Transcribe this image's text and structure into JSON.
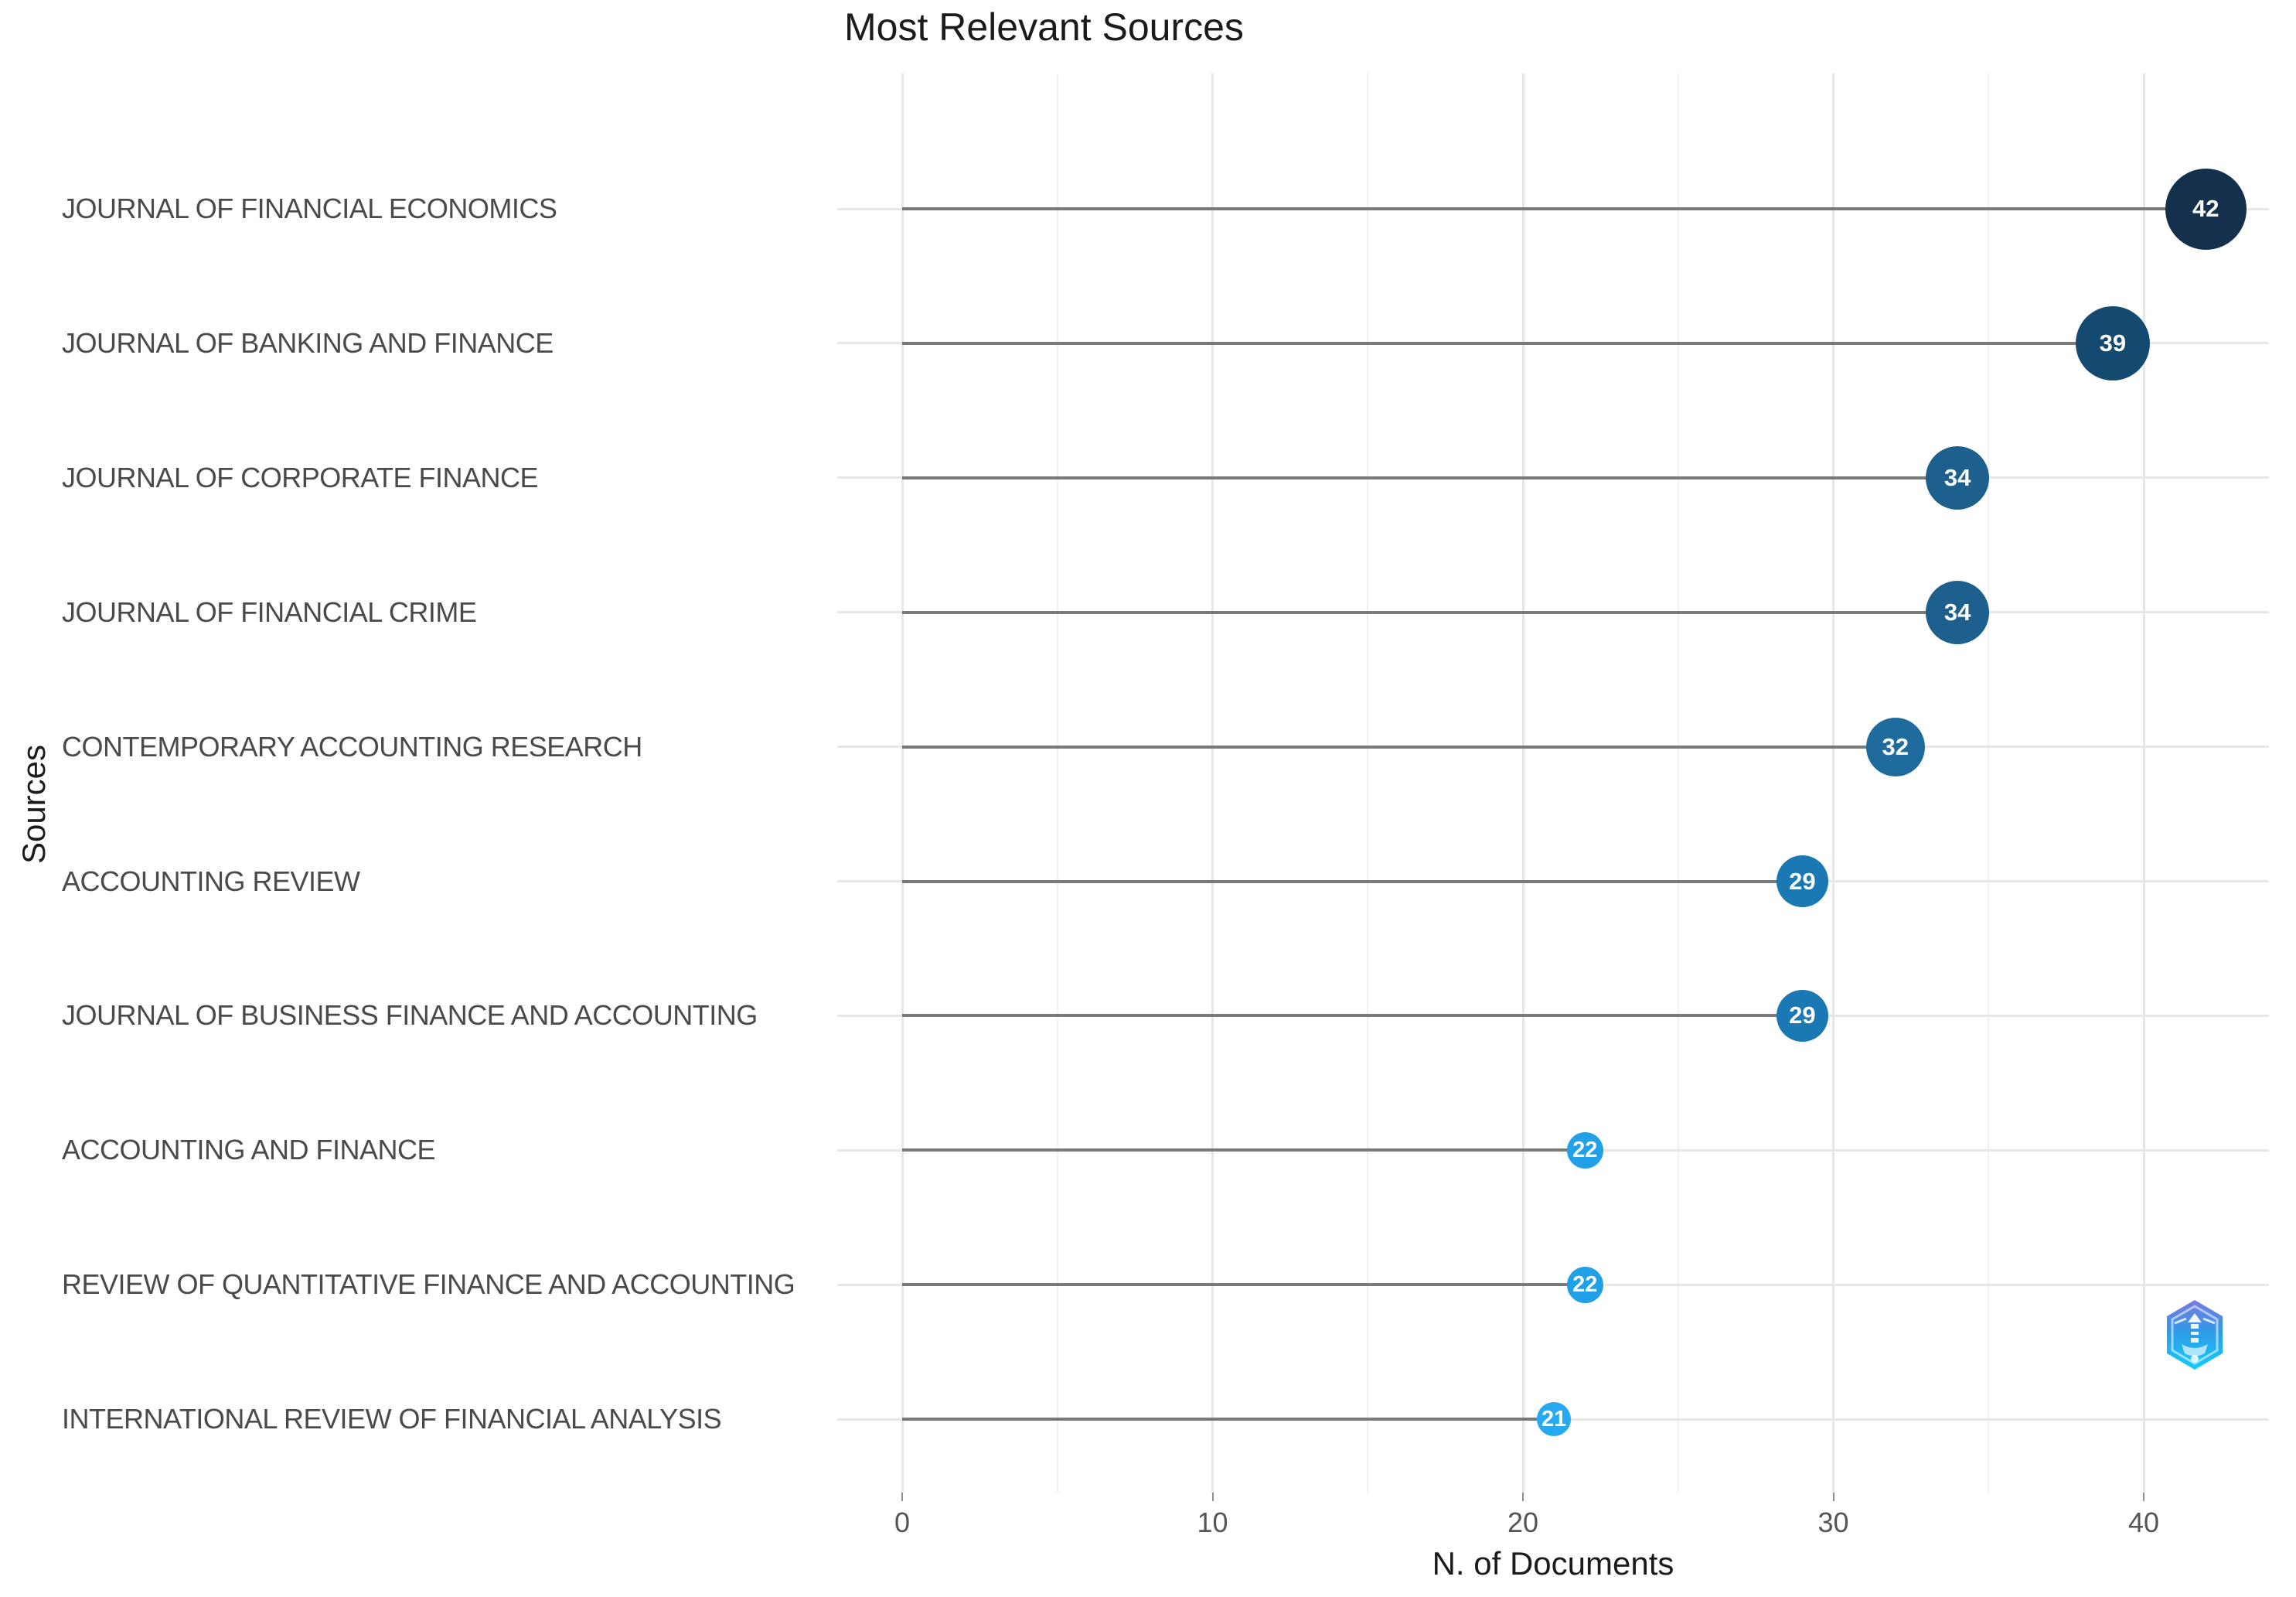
{
  "title": "Most Relevant Sources",
  "chart_data": {
    "type": "scatter",
    "variant": "lollipop-dot-chart",
    "title": "Most Relevant Sources",
    "xlabel": "N. of Documents",
    "ylabel": "Sources",
    "categories": [
      "JOURNAL OF FINANCIAL ECONOMICS",
      "JOURNAL OF BANKING AND FINANCE",
      "JOURNAL OF CORPORATE FINANCE",
      "JOURNAL OF FINANCIAL CRIME",
      "CONTEMPORARY ACCOUNTING RESEARCH",
      "ACCOUNTING REVIEW",
      "JOURNAL OF BUSINESS FINANCE AND ACCOUNTING",
      "ACCOUNTING AND FINANCE",
      "REVIEW OF QUANTITATIVE FINANCE AND ACCOUNTING",
      "INTERNATIONAL REVIEW OF FINANCIAL ANALYSIS"
    ],
    "values": [
      42,
      39,
      34,
      34,
      32,
      29,
      29,
      22,
      22,
      21
    ],
    "colors": [
      "#14304c",
      "#154a70",
      "#1d5f8d",
      "#1d5f8d",
      "#1f6b9e",
      "#1a78b2",
      "#1a78b2",
      "#20a0e6",
      "#20a0e6",
      "#27a9f2"
    ],
    "xticks": [
      0,
      10,
      20,
      30,
      40
    ],
    "xticks_minor": [
      5,
      15,
      25,
      35
    ],
    "xlim": [
      0,
      44
    ],
    "grid": "on",
    "legend": "none",
    "stem_color": "#7a7a7a",
    "dot_label_color": "#ffffff"
  },
  "watermark": {
    "icon": "biblioshiny-hexagon-lighthouse-logo"
  }
}
